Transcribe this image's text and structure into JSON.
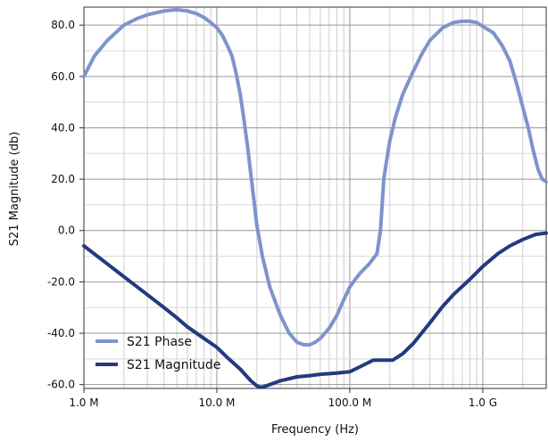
{
  "chart_data": {
    "type": "line",
    "xlabel": "Frequency (Hz)",
    "ylabel": "S21 Magnitude (db)",
    "x_scale": "log",
    "xlim": [
      1000000,
      3000000000
    ],
    "ylim": [
      -61.5,
      87
    ],
    "grid": true,
    "legend_position": "bottom-left",
    "xticks": [
      {
        "value": 1000000,
        "label": "1.0 M"
      },
      {
        "value": 10000000,
        "label": "10.0 M"
      },
      {
        "value": 100000000,
        "label": "100.0 M"
      },
      {
        "value": 1000000000,
        "label": "1.0 G"
      }
    ],
    "yticks": [
      {
        "value": 80,
        "label": "80.0"
      },
      {
        "value": 60,
        "label": "60.0"
      },
      {
        "value": 40,
        "label": "40.0"
      },
      {
        "value": 20,
        "label": "20.0"
      },
      {
        "value": 0,
        "label": "0.0"
      },
      {
        "value": -20,
        "label": "-20.0"
      },
      {
        "value": -40,
        "label": "-40.0"
      },
      {
        "value": -60,
        "label": "-60.0"
      }
    ],
    "series": [
      {
        "name": "S21 Phase",
        "color": "#7f93cc",
        "points": [
          [
            1000000,
            60
          ],
          [
            1200000,
            68
          ],
          [
            1500000,
            74
          ],
          [
            2000000,
            80
          ],
          [
            2500000,
            82.5
          ],
          [
            3000000,
            84
          ],
          [
            4000000,
            85.5
          ],
          [
            5000000,
            86
          ],
          [
            6000000,
            85.5
          ],
          [
            7000000,
            84.5
          ],
          [
            8000000,
            83
          ],
          [
            9000000,
            81
          ],
          [
            10000000,
            79
          ],
          [
            11000000,
            76
          ],
          [
            12000000,
            72
          ],
          [
            13000000,
            68
          ],
          [
            14000000,
            61
          ],
          [
            15000000,
            53
          ],
          [
            16000000,
            43
          ],
          [
            17000000,
            33
          ],
          [
            18000000,
            22
          ],
          [
            19000000,
            12
          ],
          [
            20000000,
            2
          ],
          [
            22000000,
            -10
          ],
          [
            25000000,
            -22
          ],
          [
            30000000,
            -33
          ],
          [
            35000000,
            -40
          ],
          [
            40000000,
            -43.5
          ],
          [
            45000000,
            -44.5
          ],
          [
            50000000,
            -44.5
          ],
          [
            55000000,
            -43.5
          ],
          [
            60000000,
            -42
          ],
          [
            70000000,
            -38
          ],
          [
            80000000,
            -33
          ],
          [
            90000000,
            -27
          ],
          [
            100000000,
            -22
          ],
          [
            110000000,
            -19
          ],
          [
            120000000,
            -16.5
          ],
          [
            140000000,
            -13
          ],
          [
            160000000,
            -9
          ],
          [
            170000000,
            0
          ],
          [
            180000000,
            20
          ],
          [
            190000000,
            28
          ],
          [
            200000000,
            35
          ],
          [
            220000000,
            44
          ],
          [
            250000000,
            53
          ],
          [
            300000000,
            62
          ],
          [
            350000000,
            69
          ],
          [
            400000000,
            74
          ],
          [
            500000000,
            79
          ],
          [
            600000000,
            81
          ],
          [
            700000000,
            81.5
          ],
          [
            800000000,
            81.5
          ],
          [
            900000000,
            81
          ],
          [
            1000000000,
            79.5
          ],
          [
            1200000000,
            77
          ],
          [
            1400000000,
            72
          ],
          [
            1600000000,
            66
          ],
          [
            1800000000,
            57
          ],
          [
            2000000000,
            48
          ],
          [
            2200000000,
            40
          ],
          [
            2400000000,
            31
          ],
          [
            2600000000,
            24
          ],
          [
            2800000000,
            20
          ],
          [
            3000000000,
            19
          ]
        ]
      },
      {
        "name": "S21 Magnitude",
        "color": "#233a80",
        "points": [
          [
            1000000,
            -6
          ],
          [
            1500000,
            -13
          ],
          [
            2000000,
            -18
          ],
          [
            3000000,
            -25
          ],
          [
            4000000,
            -30
          ],
          [
            5000000,
            -34
          ],
          [
            6000000,
            -37.5
          ],
          [
            8000000,
            -42
          ],
          [
            10000000,
            -45.5
          ],
          [
            12000000,
            -49.5
          ],
          [
            15000000,
            -54
          ],
          [
            18000000,
            -58.5
          ],
          [
            20000000,
            -60.5
          ],
          [
            21000000,
            -61
          ],
          [
            22000000,
            -61
          ],
          [
            25000000,
            -60
          ],
          [
            30000000,
            -58.5
          ],
          [
            40000000,
            -57
          ],
          [
            50000000,
            -56.5
          ],
          [
            60000000,
            -56
          ],
          [
            80000000,
            -55.5
          ],
          [
            100000000,
            -55
          ],
          [
            120000000,
            -53
          ],
          [
            150000000,
            -50.5
          ],
          [
            180000000,
            -50.5
          ],
          [
            210000000,
            -50.5
          ],
          [
            250000000,
            -48
          ],
          [
            300000000,
            -44
          ],
          [
            400000000,
            -36
          ],
          [
            500000000,
            -29.5
          ],
          [
            600000000,
            -25
          ],
          [
            800000000,
            -19
          ],
          [
            1000000000,
            -14
          ],
          [
            1300000000,
            -9
          ],
          [
            1600000000,
            -6
          ],
          [
            2000000000,
            -3.5
          ],
          [
            2500000000,
            -1.5
          ],
          [
            3000000000,
            -1
          ]
        ]
      }
    ]
  }
}
